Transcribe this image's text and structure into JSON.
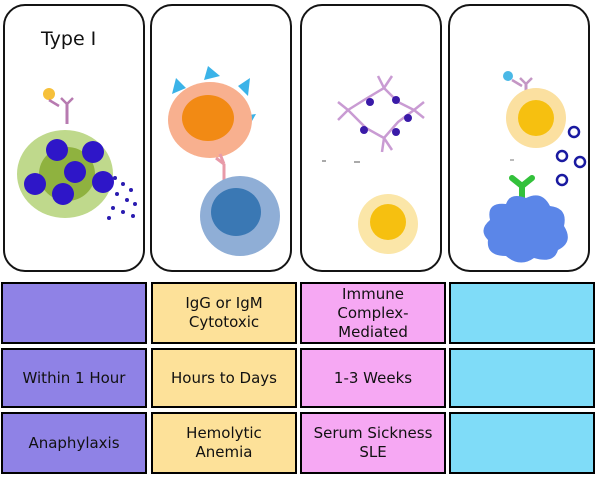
{
  "cards": [
    {
      "title": "Type I",
      "icon": "mast-cell-degranulation-icon"
    },
    {
      "title": "",
      "icon": "antibody-cell-binding-icon"
    },
    {
      "title": "",
      "icon": "immune-complex-icon"
    },
    {
      "title": "",
      "icon": "t-cell-antigen-presentation-icon"
    }
  ],
  "table": {
    "rows": [
      [
        "",
        "IgG or IgM\nCytotoxic",
        "Immune\nComplex-\nMediated",
        ""
      ],
      [
        "Within 1 Hour",
        "Hours to Days",
        "1-3 Weeks",
        ""
      ],
      [
        "Anaphylaxis",
        "Hemolytic Anemia",
        "Serum Sickness\nSLE",
        ""
      ]
    ]
  },
  "colors": {
    "type1": "#8f82e6",
    "type2": "#fde199",
    "type3": "#f6a8f3",
    "type4": "#7fdcf8"
  }
}
